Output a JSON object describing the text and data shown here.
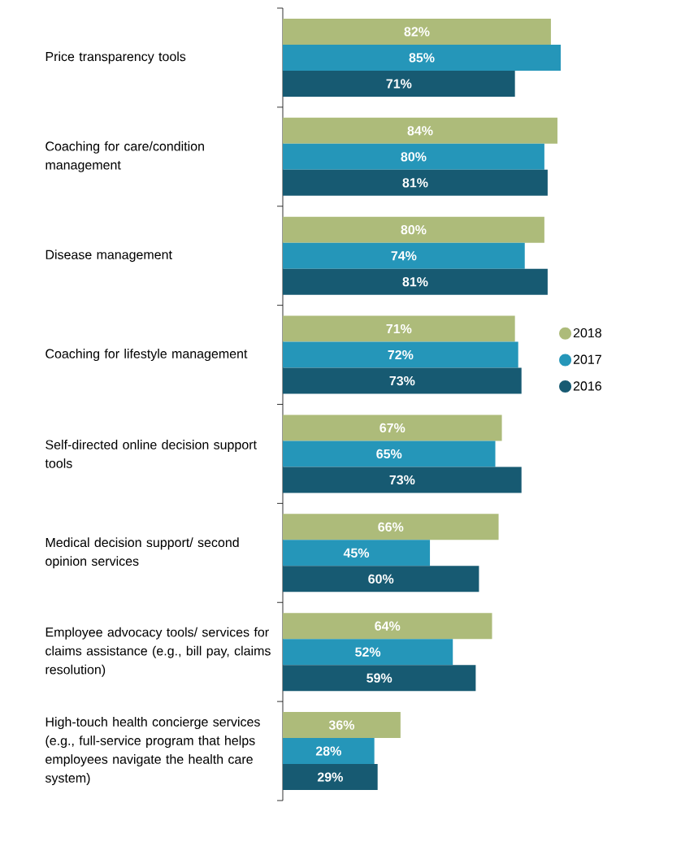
{
  "chart_data": {
    "type": "bar",
    "orientation": "horizontal",
    "legend": "right",
    "categories": [
      "Price transparency tools",
      "Coaching for care/condition management",
      "Disease management",
      "Coaching for lifestyle management",
      "Self-directed online decision support tools",
      "Medical decision support/ second opinion services",
      "Employee advocacy tools/ services for claims assistance (e.g., bill pay, claims resolution)",
      "High-touch health concierge services (e.g., full-service program that helps employees navigate the health care system)"
    ],
    "series": [
      {
        "name": "2018",
        "color": "#adbb7a",
        "values": [
          82,
          84,
          80,
          71,
          67,
          66,
          64,
          36
        ],
        "value_labels": [
          "82%",
          "84%",
          "80%",
          "71%",
          "67%",
          "66%",
          "64%",
          "36%"
        ]
      },
      {
        "name": "2017",
        "color": "#2596b9",
        "values": [
          85,
          80,
          74,
          72,
          65,
          45,
          52,
          28
        ],
        "value_labels": [
          "85%",
          "80%",
          "74%",
          "72%",
          "65%",
          "45%",
          "52%",
          "28%"
        ]
      },
      {
        "name": "2016",
        "color": "#175a72",
        "values": [
          71,
          81,
          81,
          73,
          73,
          60,
          59,
          29
        ],
        "value_labels": [
          "71%",
          "81%",
          "81%",
          "73%",
          "73%",
          "60%",
          "59%",
          "29%"
        ]
      }
    ]
  }
}
